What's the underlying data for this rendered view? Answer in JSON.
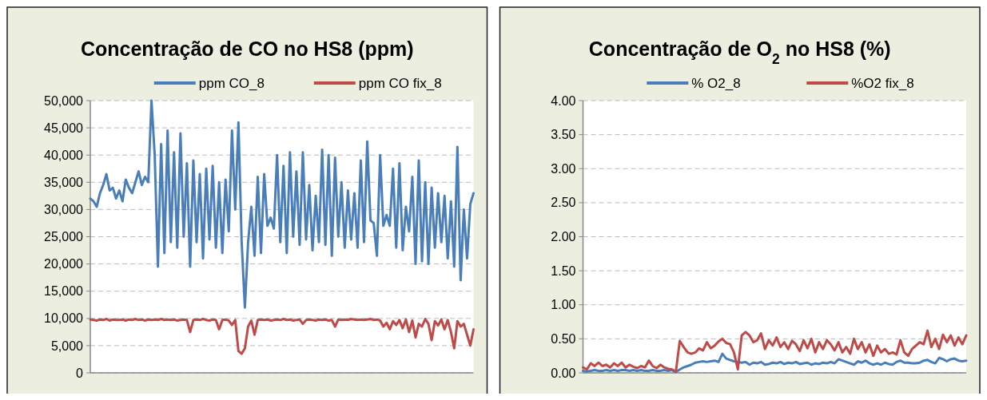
{
  "chart_data": [
    {
      "type": "line",
      "title": "Concentração de CO no HS8 (ppm)",
      "categories": [
        null,
        null,
        null,
        null,
        null,
        null,
        null,
        null,
        null,
        null,
        null,
        null,
        null,
        null,
        null,
        null,
        null,
        null,
        null,
        null,
        null,
        null,
        null,
        null,
        null,
        null,
        null,
        null,
        null,
        null,
        null,
        null,
        null,
        null,
        null,
        null,
        null,
        null,
        null,
        null,
        null,
        null,
        null,
        null,
        null,
        null,
        null,
        null,
        null,
        null,
        null,
        null,
        null,
        null,
        null,
        null,
        null,
        null,
        null,
        null,
        null,
        null,
        null,
        null,
        null,
        null,
        null,
        null,
        null,
        null,
        null,
        null,
        null,
        null,
        null,
        null,
        null,
        null,
        null,
        null,
        null,
        null,
        null,
        null,
        null,
        null,
        null,
        null,
        null,
        null,
        null,
        null,
        null,
        null,
        null,
        null,
        null,
        null,
        null,
        null,
        null,
        null,
        null,
        null,
        null,
        null,
        null,
        null,
        null,
        null,
        null,
        null,
        null,
        null,
        null,
        null,
        null,
        null,
        null,
        null
      ],
      "series": [
        {
          "name": "ppm CO_8",
          "color": "#4a7ebb",
          "values": [
            32000,
            31500,
            30500,
            33000,
            34500,
            36500,
            33500,
            34000,
            32000,
            33500,
            31500,
            35500,
            34000,
            33000,
            35000,
            37000,
            34500,
            36000,
            35000,
            50000,
            40000,
            19500,
            42000,
            22000,
            44500,
            24000,
            40500,
            23000,
            44000,
            25000,
            38500,
            19500,
            39000,
            24000,
            36500,
            21000,
            37500,
            24500,
            38000,
            23000,
            35000,
            22000,
            35500,
            26000,
            44500,
            30000,
            46000,
            24000,
            12000,
            24000,
            30500,
            21500,
            36000,
            22000,
            36500,
            27000,
            28500,
            26500,
            40000,
            24000,
            38000,
            22000,
            40500,
            25000,
            37000,
            23500,
            40500,
            24500,
            34500,
            22500,
            32500,
            24000,
            41000,
            23500,
            40000,
            21500,
            39500,
            25000,
            35000,
            23000,
            33500,
            24500,
            33000,
            23000,
            39000,
            24000,
            42500,
            28000,
            27500,
            21500,
            40000,
            27000,
            29000,
            27000,
            37500,
            23000,
            38500,
            22500,
            30500,
            26000,
            36000,
            20000,
            39000,
            20500,
            35000,
            20000,
            34000,
            23000,
            33000,
            24000,
            32500,
            21000,
            31500,
            19500,
            41500,
            17000,
            30000,
            21000,
            31000,
            33000
          ]
        },
        {
          "name": "ppm CO fix_8",
          "color": "#be4b48",
          "values": [
            9800,
            9700,
            9600,
            9800,
            9700,
            9900,
            9600,
            9800,
            9700,
            9700,
            9800,
            9600,
            9800,
            9700,
            9900,
            9700,
            9800,
            9600,
            9800,
            9700,
            9800,
            9700,
            9900,
            9700,
            9800,
            9700,
            9800,
            9600,
            9700,
            9800,
            9700,
            7500,
            9700,
            9800,
            9700,
            9900,
            9700,
            9600,
            9800,
            9700,
            8000,
            9700,
            9800,
            9600,
            8800,
            9700,
            4000,
            3500,
            4500,
            8500,
            9600,
            7000,
            9700,
            9800,
            9700,
            9800,
            9600,
            9700,
            9800,
            9700,
            9900,
            9700,
            9800,
            9600,
            9700,
            9800,
            9000,
            9700,
            9800,
            9700,
            9600,
            9800,
            9700,
            9800,
            9600,
            9700,
            8500,
            9800,
            9700,
            9800,
            9700,
            9900,
            9800,
            9700,
            9800,
            9700,
            9800,
            9900,
            9700,
            9800,
            9600,
            8500,
            9200,
            8000,
            9500,
            8800,
            9700,
            8200,
            9800,
            7500,
            9600,
            6500,
            9000,
            8500,
            9900,
            9000,
            6000,
            9500,
            8700,
            9800,
            8000,
            9700,
            7500,
            4500,
            9500,
            8500,
            9000,
            7000,
            5000,
            8000
          ]
        }
      ],
      "ylim": [
        0,
        50000
      ],
      "yticks": [
        {
          "value": 0,
          "label": "0"
        },
        {
          "value": 5000,
          "label": "5,000"
        },
        {
          "value": 10000,
          "label": "10,000"
        },
        {
          "value": 15000,
          "label": "15,000"
        },
        {
          "value": 20000,
          "label": "20,000"
        },
        {
          "value": 25000,
          "label": "25,000"
        },
        {
          "value": 30000,
          "label": "30,000"
        },
        {
          "value": 35000,
          "label": "35,000"
        },
        {
          "value": 40000,
          "label": "40,000"
        },
        {
          "value": 45000,
          "label": "45,000"
        },
        {
          "value": 50000,
          "label": "50,000"
        }
      ],
      "grid": "y",
      "legend": "top"
    },
    {
      "type": "line",
      "title": "Concentração de O$_{2}$ no HS8 (%)",
      "categories": [
        null,
        null,
        null,
        null,
        null,
        null,
        null,
        null,
        null,
        null,
        null,
        null,
        null,
        null,
        null,
        null,
        null,
        null,
        null,
        null,
        null,
        null,
        null,
        null,
        null,
        null,
        null,
        null,
        null,
        null,
        null,
        null,
        null,
        null,
        null,
        null,
        null,
        null,
        null,
        null,
        null,
        null,
        null,
        null,
        null,
        null,
        null,
        null,
        null,
        null,
        null,
        null,
        null,
        null,
        null,
        null,
        null,
        null,
        null,
        null,
        null,
        null,
        null,
        null,
        null,
        null,
        null,
        null,
        null,
        null,
        null,
        null,
        null,
        null,
        null,
        null,
        null,
        null,
        null,
        null,
        null,
        null,
        null,
        null,
        null,
        null,
        null,
        null,
        null,
        null,
        null,
        null,
        null,
        null,
        null,
        null,
        null,
        null,
        null,
        null
      ],
      "series": [
        {
          "name": "% O2_8",
          "color": "#4a7ebb",
          "values": [
            0.03,
            0.02,
            0.03,
            0.04,
            0.03,
            0.03,
            0.04,
            0.03,
            0.04,
            0.03,
            0.04,
            0.04,
            0.03,
            0.04,
            0.03,
            0.04,
            0.03,
            0.03,
            0.04,
            0.03,
            0.03,
            0.04,
            0.03,
            0.04,
            0.01,
            0.05,
            0.08,
            0.1,
            0.12,
            0.15,
            0.16,
            0.17,
            0.16,
            0.17,
            0.18,
            0.16,
            0.28,
            0.21,
            0.19,
            0.17,
            0.16,
            0.15,
            0.16,
            0.12,
            0.15,
            0.14,
            0.16,
            0.12,
            0.13,
            0.15,
            0.14,
            0.16,
            0.13,
            0.15,
            0.14,
            0.16,
            0.13,
            0.14,
            0.15,
            0.12,
            0.14,
            0.13,
            0.15,
            0.14,
            0.16,
            0.14,
            0.2,
            0.18,
            0.16,
            0.14,
            0.12,
            0.17,
            0.15,
            0.18,
            0.14,
            0.12,
            0.14,
            0.12,
            0.15,
            0.13,
            0.12,
            0.16,
            0.18,
            0.15,
            0.15,
            0.14,
            0.14,
            0.15,
            0.18,
            0.19,
            0.16,
            0.14,
            0.22,
            0.2,
            0.17,
            0.2,
            0.21,
            0.18,
            0.17,
            0.18
          ]
        },
        {
          "name": "%O2 fix_8",
          "color": "#be4b48",
          "values": [
            0.08,
            0.05,
            0.14,
            0.1,
            0.15,
            0.1,
            0.12,
            0.08,
            0.14,
            0.1,
            0.15,
            0.08,
            0.12,
            0.09,
            0.07,
            0.1,
            0.08,
            0.18,
            0.1,
            0.07,
            0.12,
            0.08,
            0.06,
            0.05,
            0.02,
            0.47,
            0.38,
            0.3,
            0.28,
            0.3,
            0.36,
            0.33,
            0.45,
            0.36,
            0.4,
            0.46,
            0.5,
            0.44,
            0.42,
            0.3,
            0.05,
            0.55,
            0.6,
            0.55,
            0.45,
            0.48,
            0.58,
            0.35,
            0.48,
            0.4,
            0.52,
            0.38,
            0.45,
            0.35,
            0.47,
            0.42,
            0.32,
            0.48,
            0.36,
            0.5,
            0.3,
            0.45,
            0.35,
            0.48,
            0.42,
            0.33,
            0.45,
            0.3,
            0.38,
            0.28,
            0.5,
            0.35,
            0.45,
            0.3,
            0.42,
            0.25,
            0.4,
            0.3,
            0.35,
            0.28,
            0.3,
            0.27,
            0.48,
            0.3,
            0.25,
            0.35,
            0.4,
            0.45,
            0.42,
            0.62,
            0.38,
            0.5,
            0.35,
            0.56,
            0.45,
            0.55,
            0.4,
            0.52,
            0.42,
            0.55
          ]
        }
      ],
      "ylim": [
        0,
        4
      ],
      "yticks": [
        {
          "value": 0,
          "label": "0.00"
        },
        {
          "value": 0.5,
          "label": "0.50"
        },
        {
          "value": 1,
          "label": "1.00"
        },
        {
          "value": 1.5,
          "label": "1.50"
        },
        {
          "value": 2,
          "label": "2.00"
        },
        {
          "value": 2.5,
          "label": "2.50"
        },
        {
          "value": 3,
          "label": "3.00"
        },
        {
          "value": 3.5,
          "label": "3.50"
        },
        {
          "value": 4,
          "label": "4.00"
        }
      ],
      "grid": "y",
      "legend": "top"
    }
  ]
}
